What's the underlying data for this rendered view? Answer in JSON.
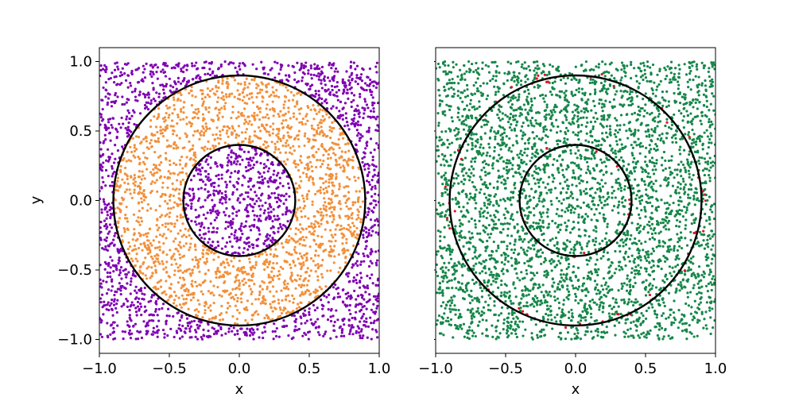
{
  "chart_data": [
    {
      "type": "scatter",
      "xlabel": "x",
      "ylabel": "y",
      "xlim": [
        -1.0,
        1.0
      ],
      "ylim": [
        -1.1,
        1.1
      ],
      "xticks": [
        "−1.0",
        "−0.5",
        "0.0",
        "0.5",
        "1.0"
      ],
      "xtick_values": [
        -1.0,
        -0.5,
        0.0,
        0.5,
        1.0
      ],
      "yticks": [
        "−1.0",
        "−0.5",
        "0.0",
        "0.5",
        "1.0"
      ],
      "ytick_values": [
        -1.0,
        -0.5,
        0.0,
        0.5,
        1.0
      ],
      "show_ytick_labels": true,
      "grid": false,
      "sampling": {
        "region": "square [-1,1]x[-1,1]",
        "approx_points": 4000
      },
      "circles": [
        {
          "center": [
            0,
            0
          ],
          "radius": 0.9
        },
        {
          "center": [
            0,
            0
          ],
          "radius": 0.4
        }
      ],
      "classes": [
        {
          "rule": "r < 0.4",
          "color": "#7f00b3"
        },
        {
          "rule": "0.4 <= r < 0.9",
          "color": "#f2913c"
        },
        {
          "rule": "r >= 0.9",
          "color": "#7f00b3"
        }
      ]
    },
    {
      "type": "scatter",
      "xlabel": "x",
      "ylabel": "",
      "xlim": [
        -1.0,
        1.0
      ],
      "ylim": [
        -1.1,
        1.1
      ],
      "xticks": [
        "−1.0",
        "−0.5",
        "0.0",
        "0.5",
        "1.0"
      ],
      "xtick_values": [
        -1.0,
        -0.5,
        0.0,
        0.5,
        1.0
      ],
      "yticks": [],
      "ytick_values": [
        -1.0,
        -0.5,
        0.0,
        0.5,
        1.0
      ],
      "show_ytick_labels": false,
      "grid": false,
      "sampling": {
        "region": "square [-1,1]x[-1,1]",
        "approx_points": 4000
      },
      "circles": [
        {
          "center": [
            0,
            0
          ],
          "radius": 0.9
        },
        {
          "center": [
            0,
            0
          ],
          "radius": 0.4
        }
      ],
      "classes": [
        {
          "rule": "correct",
          "color": "#16874a"
        },
        {
          "rule": "misclassified (near circle boundaries)",
          "color": "#e3141c"
        }
      ]
    }
  ]
}
